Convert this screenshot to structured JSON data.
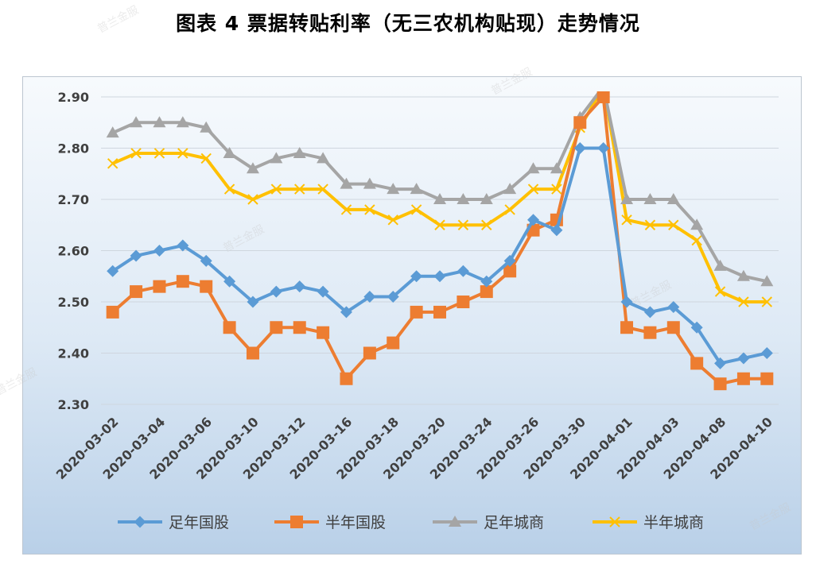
{
  "title": "图表 4 票据转贴利率（无三农机构贴现）走势情况",
  "watermark": "普兰金服",
  "chart_data": {
    "type": "line",
    "title": "图表 4 票据转贴利率（无三农机构贴现）走势情况",
    "ylim": [
      2.3,
      2.9
    ],
    "yticks": [
      "2.90",
      "2.80",
      "2.70",
      "2.60",
      "2.50",
      "2.40",
      "2.30"
    ],
    "grid": true,
    "legend_position": "bottom",
    "x_labels": [
      "2020-03-02",
      "2020-03-04",
      "2020-03-06",
      "2020-03-10",
      "2020-03-12",
      "2020-03-16",
      "2020-03-18",
      "2020-03-20",
      "2020-03-24",
      "2020-03-26",
      "2020-03-30",
      "2020-04-01",
      "2020-04-03",
      "2020-04-08",
      "2020-04-10"
    ],
    "x": [
      "2020-03-02",
      "2020-03-03",
      "2020-03-04",
      "2020-03-05",
      "2020-03-06",
      "2020-03-09",
      "2020-03-10",
      "2020-03-11",
      "2020-03-12",
      "2020-03-13",
      "2020-03-16",
      "2020-03-17",
      "2020-03-18",
      "2020-03-19",
      "2020-03-20",
      "2020-03-23",
      "2020-03-24",
      "2020-03-25",
      "2020-03-26",
      "2020-03-27",
      "2020-03-30",
      "2020-03-31",
      "2020-04-01",
      "2020-04-02",
      "2020-04-03",
      "2020-04-07",
      "2020-04-08",
      "2020-04-09",
      "2020-04-10"
    ],
    "series": [
      {
        "name": "足年国股",
        "color": "#5b9bd5",
        "marker": "diamond",
        "values": [
          2.56,
          2.59,
          2.6,
          2.61,
          2.58,
          2.54,
          2.5,
          2.52,
          2.53,
          2.52,
          2.48,
          2.51,
          2.51,
          2.55,
          2.55,
          2.56,
          2.54,
          2.58,
          2.66,
          2.64,
          2.8,
          2.8,
          2.5,
          2.48,
          2.49,
          2.45,
          2.38,
          2.39,
          2.4
        ]
      },
      {
        "name": "半年国股",
        "color": "#ed7d31",
        "marker": "square",
        "values": [
          2.48,
          2.52,
          2.53,
          2.54,
          2.53,
          2.45,
          2.4,
          2.45,
          2.45,
          2.44,
          2.35,
          2.4,
          2.42,
          2.48,
          2.48,
          2.5,
          2.52,
          2.56,
          2.64,
          2.66,
          2.85,
          2.9,
          2.45,
          2.44,
          2.45,
          2.38,
          2.34,
          2.35,
          2.35
        ]
      },
      {
        "name": "足年城商",
        "color": "#a5a5a5",
        "marker": "triangle",
        "values": [
          2.83,
          2.85,
          2.85,
          2.85,
          2.84,
          2.79,
          2.76,
          2.78,
          2.79,
          2.78,
          2.73,
          2.73,
          2.72,
          2.72,
          2.7,
          2.7,
          2.7,
          2.72,
          2.76,
          2.76,
          2.86,
          2.92,
          2.7,
          2.7,
          2.7,
          2.65,
          2.57,
          2.55,
          2.54
        ]
      },
      {
        "name": "半年城商",
        "color": "#ffc000",
        "marker": "x",
        "values": [
          2.77,
          2.79,
          2.79,
          2.79,
          2.78,
          2.72,
          2.7,
          2.72,
          2.72,
          2.72,
          2.68,
          2.68,
          2.66,
          2.68,
          2.65,
          2.65,
          2.65,
          2.68,
          2.72,
          2.72,
          2.84,
          2.92,
          2.66,
          2.65,
          2.65,
          2.62,
          2.52,
          2.5,
          2.5
        ]
      }
    ]
  }
}
